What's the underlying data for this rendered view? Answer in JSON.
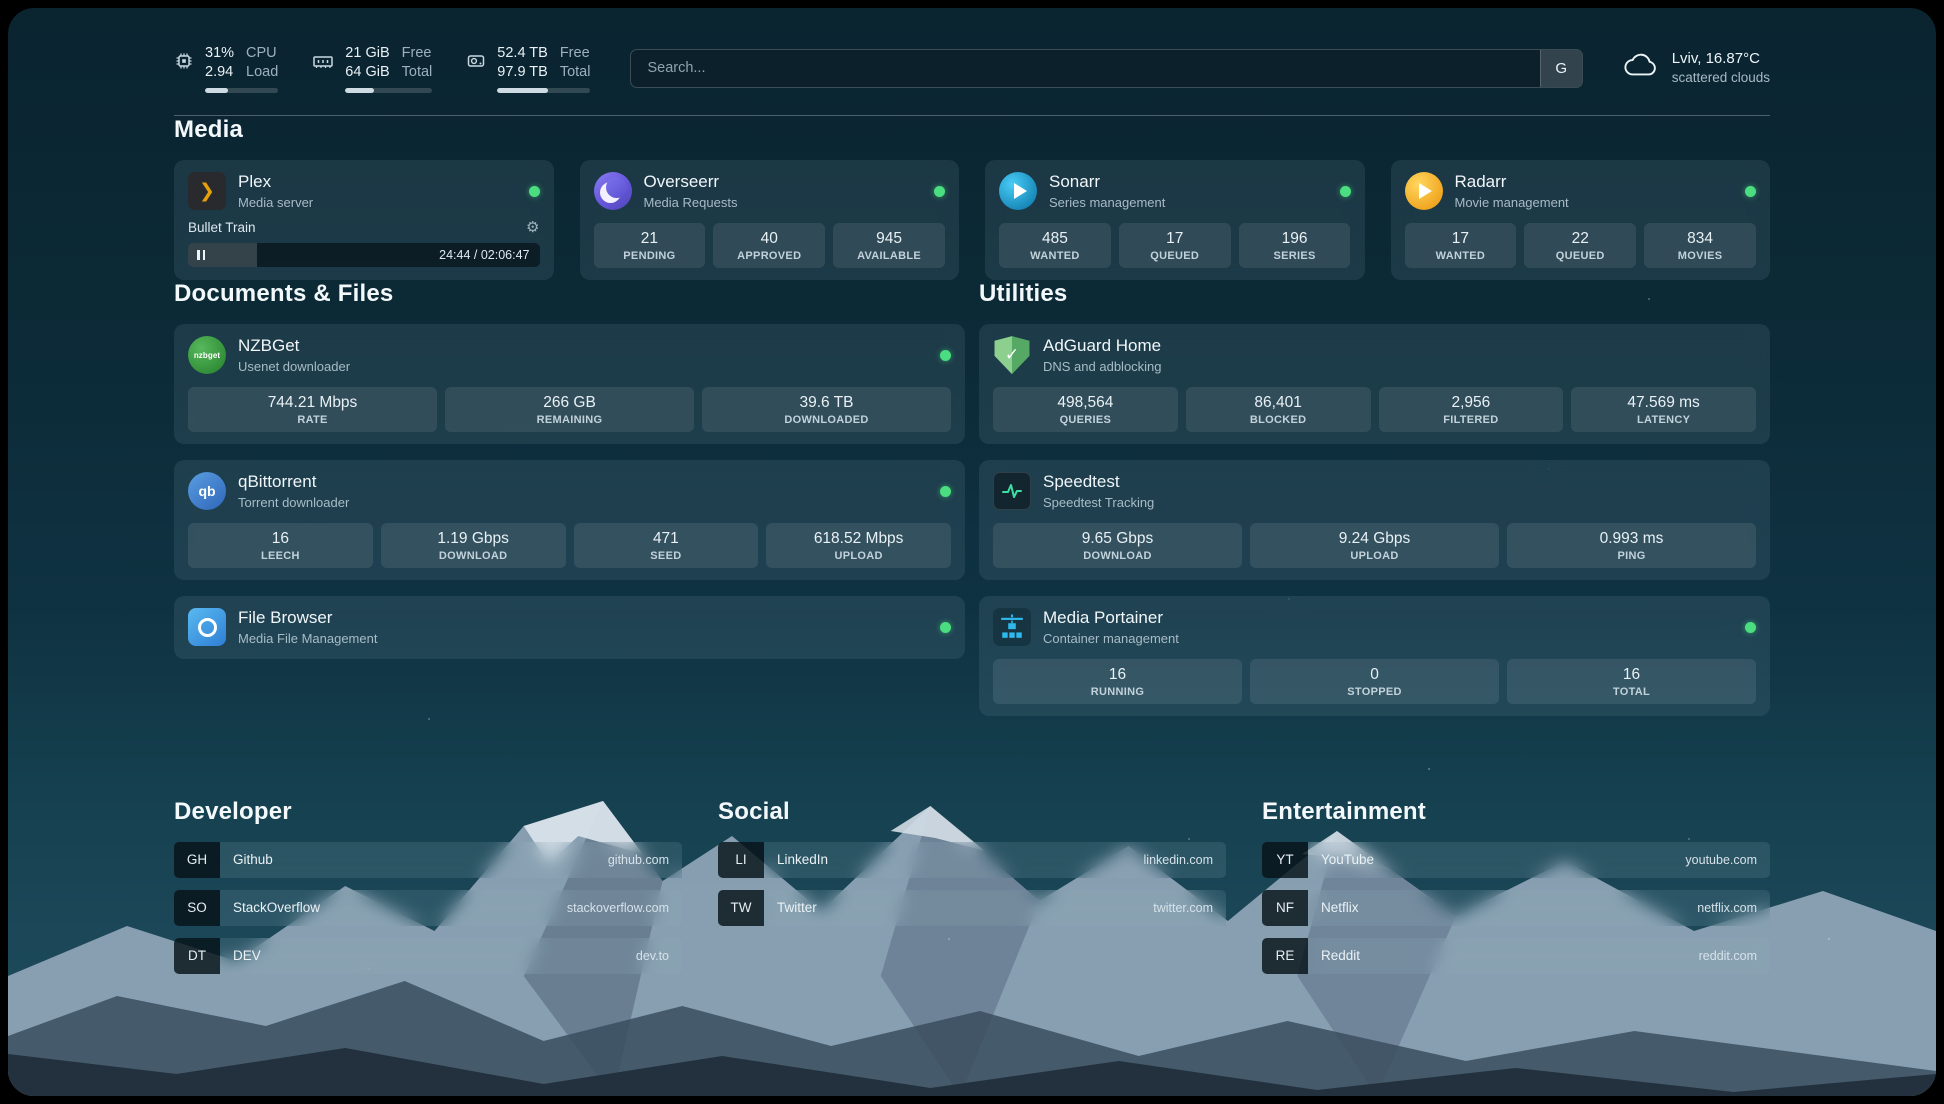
{
  "colors": {
    "status_online": "#4ade80",
    "plex_accent": "#e5a00d",
    "overseerr_accent": "#6a5ae0",
    "sonarr_accent": "#35c5f4",
    "radarr_accent": "#ffc230",
    "nzbget_accent": "#3f9e42",
    "qbittorrent_accent": "#2f67ba",
    "filebrowser_accent": "#2f7fd6",
    "adguard_accent": "#68bc71",
    "speedtest_accent": "#3ce0a0",
    "portainer_accent": "#2fb8ee"
  },
  "topbar": {
    "cpu": {
      "value": "31%",
      "load": "2.94",
      "label1": "CPU",
      "label2": "Load",
      "bar_percent": 31
    },
    "memory": {
      "value1": "21 GiB",
      "value2": "64 GiB",
      "label1": "Free",
      "label2": "Total",
      "bar_percent": 33
    },
    "disk": {
      "value1": "52.4 TB",
      "value2": "97.9 TB",
      "label1": "Free",
      "label2": "Total",
      "bar_percent": 54
    },
    "search": {
      "placeholder": "Search...",
      "provider": "G"
    },
    "weather": {
      "location": "Lviv, 16.87°C",
      "condition": "scattered clouds"
    }
  },
  "sections": {
    "media": {
      "title": "Media",
      "plex": {
        "name": "Plex",
        "desc": "Media server",
        "icon_glyph": "❯",
        "track": "Bullet Train",
        "time": "24:44 / 02:06:47",
        "progress_percent": 19.5,
        "gear_glyph": "⚙"
      },
      "overseerr": {
        "name": "Overseerr",
        "desc": "Media Requests",
        "stats": [
          {
            "value": "21",
            "label": "PENDING"
          },
          {
            "value": "40",
            "label": "APPROVED"
          },
          {
            "value": "945",
            "label": "AVAILABLE"
          }
        ]
      },
      "sonarr": {
        "name": "Sonarr",
        "desc": "Series management",
        "stats": [
          {
            "value": "485",
            "label": "WANTED"
          },
          {
            "value": "17",
            "label": "QUEUED"
          },
          {
            "value": "196",
            "label": "SERIES"
          }
        ]
      },
      "radarr": {
        "name": "Radarr",
        "desc": "Movie management",
        "stats": [
          {
            "value": "17",
            "label": "WANTED"
          },
          {
            "value": "22",
            "label": "QUEUED"
          },
          {
            "value": "834",
            "label": "MOVIES"
          }
        ]
      }
    },
    "documents": {
      "title": "Documents & Files",
      "nzbget": {
        "name": "NZBGet",
        "desc": "Usenet downloader",
        "icon_label": "nzbget",
        "stats": [
          {
            "value": "744.21 Mbps",
            "label": "RATE"
          },
          {
            "value": "266 GB",
            "label": "REMAINING"
          },
          {
            "value": "39.6 TB",
            "label": "DOWNLOADED"
          }
        ]
      },
      "qbittorrent": {
        "name": "qBittorrent",
        "desc": "Torrent downloader",
        "icon_label": "qb",
        "stats": [
          {
            "value": "16",
            "label": "LEECH"
          },
          {
            "value": "1.19 Gbps",
            "label": "DOWNLOAD"
          },
          {
            "value": "471",
            "label": "SEED"
          },
          {
            "value": "618.52 Mbps",
            "label": "UPLOAD"
          }
        ]
      },
      "filebrowser": {
        "name": "File Browser",
        "desc": "Media File Management"
      }
    },
    "utilities": {
      "title": "Utilities",
      "adguard": {
        "name": "AdGuard Home",
        "desc": "DNS and adblocking",
        "icon_glyph": "✓",
        "stats": [
          {
            "value": "498,564",
            "label": "QUERIES"
          },
          {
            "value": "86,401",
            "label": "BLOCKED"
          },
          {
            "value": "2,956",
            "label": "FILTERED"
          },
          {
            "value": "47.569 ms",
            "label": "LATENCY"
          }
        ]
      },
      "speedtest": {
        "name": "Speedtest",
        "desc": "Speedtest Tracking",
        "stats": [
          {
            "value": "9.65 Gbps",
            "label": "DOWNLOAD"
          },
          {
            "value": "9.24 Gbps",
            "label": "UPLOAD"
          },
          {
            "value": "0.993 ms",
            "label": "PING"
          }
        ]
      },
      "portainer": {
        "name": "Media Portainer",
        "desc": "Container management",
        "stats": [
          {
            "value": "16",
            "label": "RUNNING"
          },
          {
            "value": "0",
            "label": "STOPPED"
          },
          {
            "value": "16",
            "label": "TOTAL"
          }
        ]
      }
    },
    "bookmarks": [
      {
        "title": "Developer",
        "items": [
          {
            "abbr": "GH",
            "name": "Github",
            "url": "github.com"
          },
          {
            "abbr": "SO",
            "name": "StackOverflow",
            "url": "stackoverflow.com"
          },
          {
            "abbr": "DT",
            "name": "DEV",
            "url": "dev.to"
          }
        ]
      },
      {
        "title": "Social",
        "items": [
          {
            "abbr": "LI",
            "name": "LinkedIn",
            "url": "linkedin.com"
          },
          {
            "abbr": "TW",
            "name": "Twitter",
            "url": "twitter.com"
          }
        ]
      },
      {
        "title": "Entertainment",
        "items": [
          {
            "abbr": "YT",
            "name": "YouTube",
            "url": "youtube.com"
          },
          {
            "abbr": "NF",
            "name": "Netflix",
            "url": "netflix.com"
          },
          {
            "abbr": "RE",
            "name": "Reddit",
            "url": "reddit.com"
          }
        ]
      }
    ]
  }
}
